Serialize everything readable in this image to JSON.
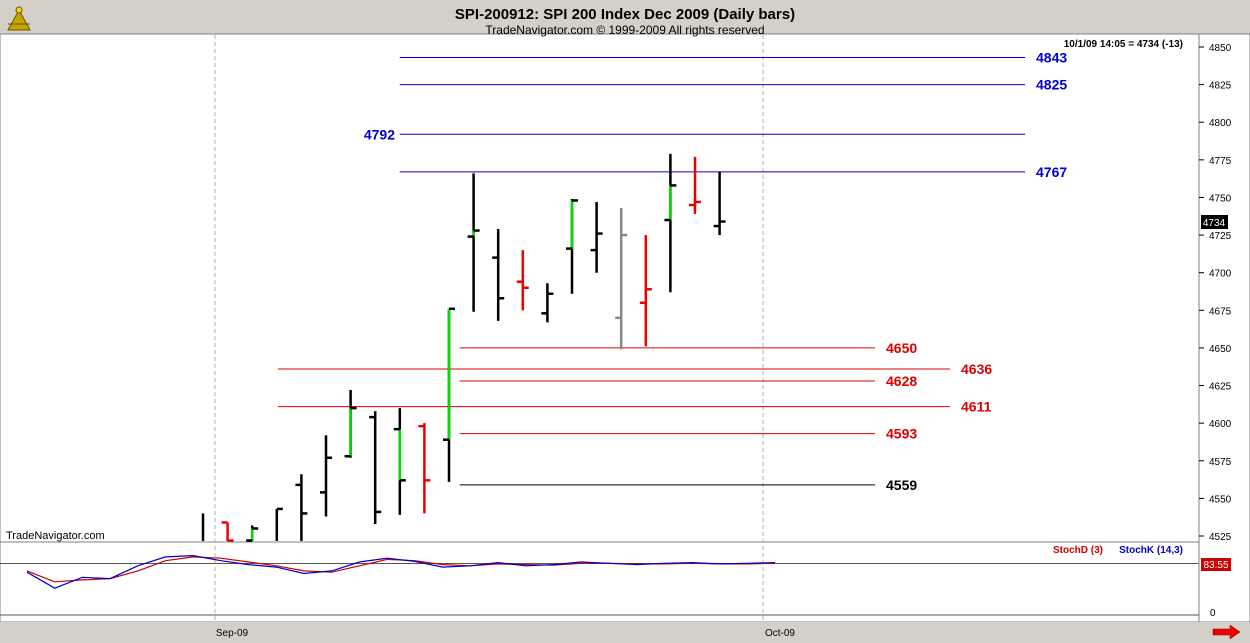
{
  "header": {
    "title": "SPI-200912:  SPI 200 Index Dec 2009  (Daily bars)",
    "subtitle": "TradeNavigator.com © 1999-2009 All rights reserved",
    "quote": "10/1/09 14:05 = 4734 (-13)"
  },
  "watermark": "TradeNavigator.com",
  "last_price_label": "4734",
  "colors": {
    "up": "#00dd00",
    "down": "#ee0000",
    "neutral": "#000000",
    "gray": "#888888",
    "blue_level": "#0000cc",
    "red_level": "#dd0000"
  },
  "price_axis": {
    "ticks": [
      "4850",
      "4825",
      "4800",
      "4775",
      "4750",
      "4725",
      "4700",
      "4675",
      "4650",
      "4625",
      "4600",
      "4575",
      "4550",
      "4525"
    ]
  },
  "date_axis": {
    "labels": [
      "Sep-09",
      "Oct-09"
    ]
  },
  "stochastic": {
    "stochd_label": "StochD (3)",
    "stochk_label": "StochK (14,3)",
    "value_label": "83.55",
    "zero_label": "0"
  },
  "chart_data": {
    "type": "ohlc",
    "title": "SPI-200912:  SPI 200 Index Dec 2009  (Daily bars)",
    "ylim": [
      4520,
      4855
    ],
    "x_labels": [
      "Sep-09",
      "Oct-09"
    ],
    "bars": [
      {
        "o": null,
        "h": 4540,
        "l": 4520,
        "c": null,
        "color": "black"
      },
      {
        "o": 4534,
        "h": 4534,
        "l": 4520,
        "c": 4522,
        "color": "red"
      },
      {
        "o": 4522,
        "h": 4532,
        "l": 4520,
        "c": 4530,
        "color": "green"
      },
      {
        "o": null,
        "h": 4543,
        "l": 4520,
        "c": 4543,
        "color": "black"
      },
      {
        "o": 4559,
        "h": 4566,
        "l": 4521,
        "c": 4540,
        "color": "black"
      },
      {
        "o": 4554,
        "h": 4592,
        "l": 4538,
        "c": 4577,
        "color": "black"
      },
      {
        "o": 4578,
        "h": 4622,
        "l": 4577,
        "c": 4610,
        "color": "green"
      },
      {
        "o": 4604,
        "h": 4608,
        "l": 4533,
        "c": 4541,
        "color": "black"
      },
      {
        "o": 4596,
        "h": 4610,
        "l": 4539,
        "c": 4562,
        "color": "green"
      },
      {
        "o": 4598,
        "h": 4600,
        "l": 4540,
        "c": 4562,
        "color": "red"
      },
      {
        "o": 4589,
        "h": 4676,
        "l": 4561,
        "c": 4676,
        "color": "green"
      },
      {
        "o": 4724,
        "h": 4766,
        "l": 4674,
        "c": 4728,
        "color": "green"
      },
      {
        "o": 4710,
        "h": 4729,
        "l": 4668,
        "c": 4683,
        "color": "black"
      },
      {
        "o": 4694,
        "h": 4715,
        "l": 4675,
        "c": 4690,
        "color": "red"
      },
      {
        "o": 4673,
        "h": 4693,
        "l": 4667,
        "c": 4686,
        "color": "black"
      },
      {
        "o": 4716,
        "h": 4749,
        "l": 4686,
        "c": 4748,
        "color": "green"
      },
      {
        "o": 4715,
        "h": 4747,
        "l": 4700,
        "c": 4726,
        "color": "black"
      },
      {
        "o": 4670,
        "h": 4743,
        "l": 4649,
        "c": 4725,
        "color": "gray"
      },
      {
        "o": 4680,
        "h": 4725,
        "l": 4651,
        "c": 4689,
        "color": "red"
      },
      {
        "o": 4735,
        "h": 4779,
        "l": 4687,
        "c": 4758,
        "color": "green"
      },
      {
        "o": 4745,
        "h": 4777,
        "l": 4739,
        "c": 4747,
        "color": "red"
      },
      {
        "o": 4731,
        "h": 4767,
        "l": 4725,
        "c": 4734,
        "color": "black"
      }
    ],
    "levels": [
      {
        "value": 4843,
        "label": "4843",
        "color": "blue",
        "label_side": "right",
        "from": 0.3
      },
      {
        "value": 4825,
        "label": "4825",
        "color": "blue",
        "label_side": "right",
        "from": 0.3
      },
      {
        "value": 4792,
        "label": "4792",
        "color": "blue",
        "label_side": "left",
        "from": 0.3
      },
      {
        "value": 4767,
        "label": "4767",
        "color": "blue",
        "label_side": "right",
        "from": 0.3
      },
      {
        "value": 4650,
        "label": "4650",
        "color": "red",
        "label_side": "right",
        "from": 0.35
      },
      {
        "value": 4636,
        "label": "4636",
        "color": "red",
        "label_side": "far",
        "from": 0.2
      },
      {
        "value": 4628,
        "label": "4628",
        "color": "red",
        "label_side": "right",
        "from": 0.35
      },
      {
        "value": 4611,
        "label": "4611",
        "color": "red",
        "label_side": "far",
        "from": 0.2
      },
      {
        "value": 4593,
        "label": "4593",
        "color": "red",
        "label_side": "right",
        "from": 0.35
      },
      {
        "value": 4559,
        "label": "4559",
        "color": "black",
        "label_side": "right",
        "from": 0.35
      }
    ],
    "stoch": {
      "ylim": [
        0,
        100
      ],
      "mid_level": 83.55,
      "stochK": [
        70,
        45,
        62,
        60,
        80,
        94,
        96,
        88,
        82,
        78,
        68,
        72,
        86,
        92,
        87,
        78,
        80,
        85,
        80,
        82,
        86,
        84,
        82,
        84,
        85,
        83,
        84,
        85
      ],
      "stochD": [
        72,
        55,
        58,
        60,
        72,
        88,
        94,
        92,
        86,
        80,
        72,
        70,
        80,
        90,
        88,
        82,
        80,
        83,
        82,
        81,
        84,
        84,
        83,
        83,
        84,
        83,
        83,
        84
      ]
    }
  }
}
